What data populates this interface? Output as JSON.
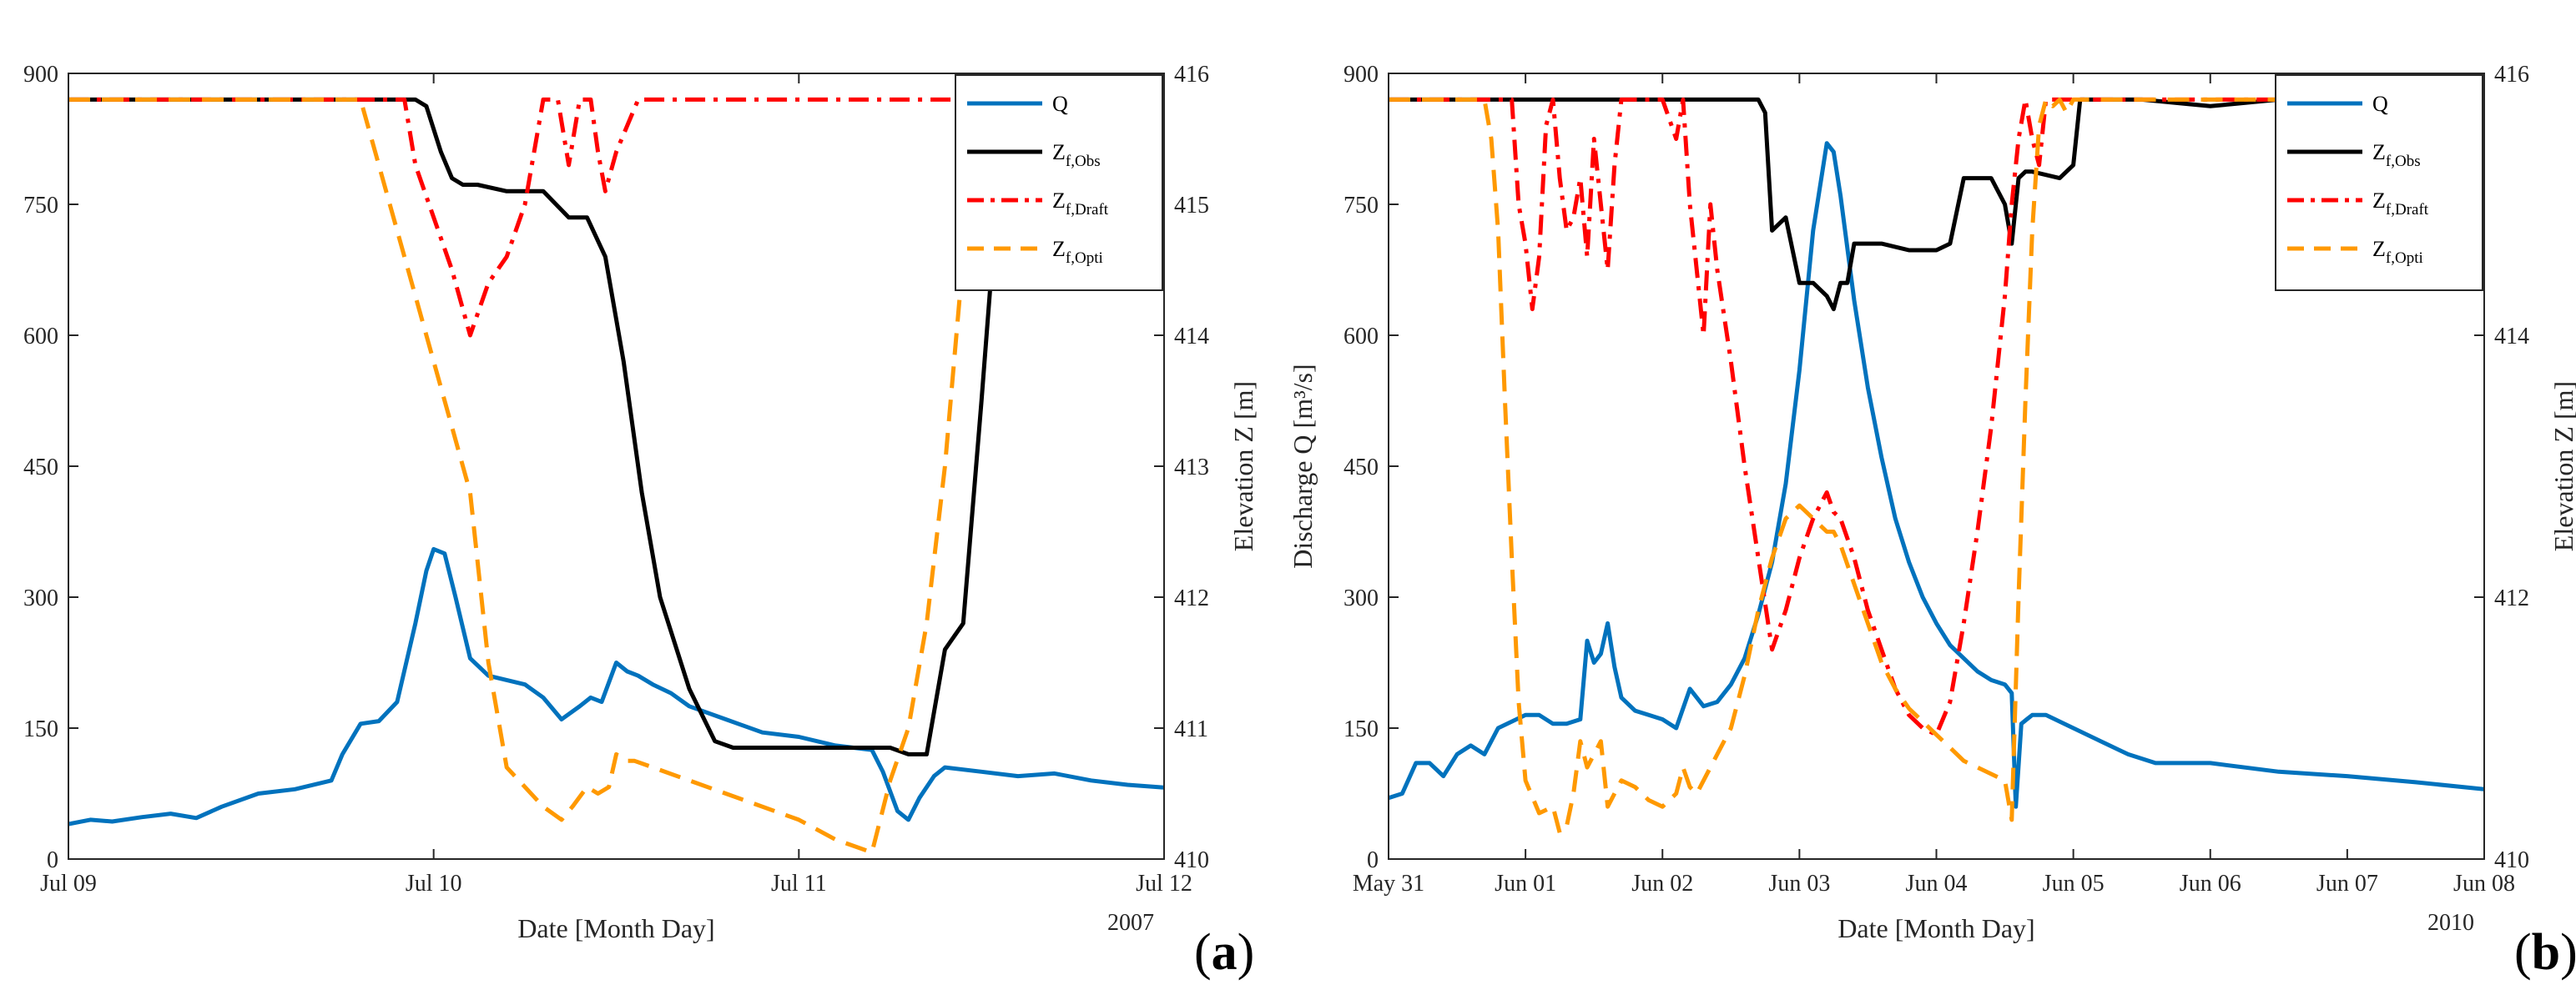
{
  "chart_data": [
    {
      "panel_label": "a",
      "type": "line",
      "year_label": "2007",
      "xlabel": "Date [Month Day]",
      "ylabel_left": "Discharge Q [m³/s]",
      "ylabel_right": "Elevation Z [m]",
      "x_ticks": [
        "Jul 09",
        "Jul 10",
        "Jul 11",
        "Jul 12"
      ],
      "xlim_days": [
        0,
        3
      ],
      "ylim_left": [
        0,
        900
      ],
      "yticks_left": [
        "0",
        "150",
        "300",
        "450",
        "600",
        "750",
        "900"
      ],
      "ylim_right": [
        410,
        416
      ],
      "yticks_right": [
        "410",
        "411",
        "412",
        "413",
        "414",
        "415",
        "416"
      ],
      "legend_position": "top-right",
      "series": [
        {
          "name": "Q",
          "sub": "",
          "axis": "left",
          "color": "#0072BD",
          "dash": "solid",
          "x": [
            0,
            0.06,
            0.12,
            0.2,
            0.28,
            0.35,
            0.42,
            0.52,
            0.62,
            0.72,
            0.75,
            0.8,
            0.85,
            0.9,
            0.95,
            0.98,
            1.0,
            1.03,
            1.06,
            1.1,
            1.15,
            1.2,
            1.25,
            1.3,
            1.35,
            1.4,
            1.43,
            1.46,
            1.5,
            1.53,
            1.56,
            1.6,
            1.65,
            1.7,
            1.8,
            1.9,
            2.0,
            2.1,
            2.2,
            2.23,
            2.27,
            2.3,
            2.33,
            2.37,
            2.4,
            2.5,
            2.6,
            2.7,
            2.8,
            2.9,
            3.0
          ],
          "y": [
            40,
            45,
            43,
            48,
            52,
            47,
            60,
            75,
            80,
            90,
            120,
            155,
            158,
            180,
            270,
            330,
            355,
            350,
            300,
            230,
            210,
            205,
            200,
            185,
            160,
            175,
            185,
            180,
            225,
            215,
            210,
            200,
            190,
            175,
            160,
            145,
            140,
            130,
            125,
            100,
            55,
            45,
            70,
            95,
            105,
            100,
            95,
            98,
            90,
            85,
            82
          ]
        },
        {
          "name": "Z",
          "sub": "f,Obs",
          "axis": "right",
          "color": "#000000",
          "dash": "solid",
          "x": [
            0,
            0.95,
            0.98,
            1.02,
            1.05,
            1.08,
            1.12,
            1.2,
            1.3,
            1.37,
            1.42,
            1.47,
            1.52,
            1.57,
            1.62,
            1.7,
            1.77,
            1.82,
            2.0,
            2.1,
            2.2,
            2.25,
            2.3,
            2.35,
            2.4,
            2.45,
            2.5,
            2.55,
            2.6,
            3.0
          ],
          "y": [
            415.8,
            415.8,
            415.75,
            415.4,
            415.2,
            415.15,
            415.15,
            415.1,
            415.1,
            414.9,
            414.9,
            414.6,
            413.8,
            412.8,
            412.0,
            411.3,
            410.9,
            410.85,
            410.85,
            410.85,
            410.85,
            410.85,
            410.8,
            410.8,
            411.6,
            411.8,
            413.5,
            415.3,
            415.8,
            415.8
          ]
        },
        {
          "name": "Z",
          "sub": "f,Draft",
          "axis": "right",
          "color": "#FF0000",
          "dash": "dashdot",
          "x": [
            0,
            0.92,
            0.95,
            1.0,
            1.05,
            1.1,
            1.15,
            1.2,
            1.25,
            1.3,
            1.34,
            1.37,
            1.4,
            1.43,
            1.45,
            1.47,
            1.5,
            1.53,
            1.56,
            1.6,
            1.65,
            1.7,
            3.0
          ],
          "y": [
            415.8,
            415.8,
            415.3,
            414.9,
            414.5,
            414.0,
            414.4,
            414.6,
            415.0,
            415.8,
            415.8,
            415.3,
            415.8,
            415.8,
            415.4,
            415.1,
            415.4,
            415.6,
            415.8,
            415.8,
            415.8,
            415.8,
            415.8
          ]
        },
        {
          "name": "Z",
          "sub": "f,Opti",
          "axis": "right",
          "color": "#FF9900",
          "dash": "dash",
          "x": [
            0,
            0.8,
            0.85,
            0.9,
            0.95,
            1.0,
            1.05,
            1.1,
            1.15,
            1.2,
            1.3,
            1.35,
            1.38,
            1.42,
            1.45,
            1.48,
            1.5,
            1.53,
            1.55,
            1.6,
            1.7,
            1.8,
            2.0,
            2.1,
            2.2,
            2.25,
            2.3,
            2.35,
            2.4,
            2.45,
            2.5,
            3.0
          ],
          "y": [
            415.8,
            415.8,
            415.3,
            414.8,
            414.3,
            413.8,
            413.3,
            412.8,
            411.5,
            410.7,
            410.4,
            410.3,
            410.4,
            410.55,
            410.5,
            410.55,
            410.8,
            410.75,
            410.75,
            410.7,
            410.6,
            410.5,
            410.3,
            410.15,
            410.05,
            410.6,
            411.0,
            411.8,
            413.0,
            414.6,
            415.8,
            415.8
          ]
        }
      ]
    },
    {
      "panel_label": "b",
      "type": "line",
      "year_label": "2010",
      "xlabel": "Date [Month Day]",
      "ylabel_left": "Discharge Q [m³/s]",
      "ylabel_right": "Elevation Z [m]",
      "x_ticks": [
        "May 31",
        "Jun 01",
        "Jun 02",
        "Jun 03",
        "Jun 04",
        "Jun 05",
        "Jun 06",
        "Jun 07",
        "Jun 08"
      ],
      "xlim_days": [
        0,
        8
      ],
      "ylim_left": [
        0,
        900
      ],
      "yticks_left": [
        "0",
        "150",
        "300",
        "450",
        "600",
        "750",
        "900"
      ],
      "ylim_right": [
        410,
        416
      ],
      "yticks_right": [
        "410",
        "412",
        "414",
        "416"
      ],
      "legend_position": "top-right",
      "series": [
        {
          "name": "Q",
          "sub": "",
          "axis": "left",
          "color": "#0072BD",
          "dash": "solid",
          "x": [
            0,
            0.1,
            0.2,
            0.3,
            0.4,
            0.5,
            0.6,
            0.7,
            0.8,
            1.0,
            1.1,
            1.2,
            1.3,
            1.4,
            1.45,
            1.5,
            1.55,
            1.6,
            1.65,
            1.7,
            1.8,
            1.9,
            2.0,
            2.1,
            2.2,
            2.3,
            2.4,
            2.5,
            2.6,
            2.7,
            2.8,
            2.9,
            3.0,
            3.1,
            3.2,
            3.25,
            3.3,
            3.4,
            3.5,
            3.6,
            3.7,
            3.8,
            3.9,
            4.0,
            4.1,
            4.2,
            4.3,
            4.4,
            4.5,
            4.55,
            4.58,
            4.62,
            4.66,
            4.7,
            4.8,
            5.0,
            5.2,
            5.4,
            5.6,
            6.0,
            6.5,
            7.0,
            7.5,
            8.0
          ],
          "y": [
            70,
            75,
            110,
            110,
            95,
            120,
            130,
            120,
            150,
            165,
            165,
            155,
            155,
            160,
            250,
            225,
            235,
            270,
            220,
            185,
            170,
            165,
            160,
            150,
            195,
            175,
            180,
            200,
            230,
            280,
            340,
            430,
            560,
            720,
            820,
            810,
            760,
            640,
            540,
            460,
            390,
            340,
            300,
            270,
            245,
            230,
            215,
            205,
            200,
            190,
            60,
            155,
            160,
            165,
            165,
            150,
            135,
            120,
            110,
            110,
            100,
            95,
            88,
            80
          ]
        },
        {
          "name": "Z",
          "sub": "f,Obs",
          "axis": "right",
          "color": "#000000",
          "dash": "solid",
          "x": [
            0,
            0.5,
            1.0,
            1.5,
            2.0,
            2.5,
            2.7,
            2.75,
            2.8,
            2.9,
            3.0,
            3.1,
            3.2,
            3.25,
            3.3,
            3.35,
            3.4,
            3.5,
            3.6,
            3.8,
            4.0,
            4.1,
            4.2,
            4.4,
            4.5,
            4.55,
            4.6,
            4.65,
            4.7,
            4.9,
            5.0,
            5.05,
            5.1,
            5.5,
            6.0,
            6.5,
            7.0,
            7.5,
            8.0
          ],
          "y": [
            415.8,
            415.8,
            415.8,
            415.8,
            415.8,
            415.8,
            415.8,
            415.7,
            414.8,
            414.9,
            414.4,
            414.4,
            414.3,
            414.2,
            414.4,
            414.4,
            414.7,
            414.7,
            414.7,
            414.65,
            414.65,
            414.7,
            415.2,
            415.2,
            415.0,
            414.7,
            415.2,
            415.25,
            415.25,
            415.2,
            415.3,
            415.8,
            415.8,
            415.8,
            415.75,
            415.8,
            415.8,
            415.8,
            415.8
          ]
        },
        {
          "name": "Z",
          "sub": "f,Draft",
          "axis": "right",
          "color": "#FF0000",
          "dash": "dashdot",
          "x": [
            0,
            0.9,
            0.95,
            1.0,
            1.05,
            1.1,
            1.15,
            1.2,
            1.25,
            1.3,
            1.35,
            1.4,
            1.45,
            1.5,
            1.55,
            1.6,
            1.65,
            1.7,
            1.75,
            1.8,
            1.9,
            2.0,
            2.1,
            2.15,
            2.2,
            2.25,
            2.3,
            2.35,
            2.4,
            2.5,
            2.6,
            2.7,
            2.8,
            2.9,
            3.0,
            3.1,
            3.2,
            3.25,
            3.3,
            3.4,
            3.5,
            3.6,
            3.7,
            3.8,
            3.9,
            4.0,
            4.1,
            4.2,
            4.3,
            4.4,
            4.5,
            4.55,
            4.6,
            4.65,
            4.7,
            4.75,
            4.8,
            4.9,
            5.0,
            8.0
          ],
          "y": [
            415.8,
            415.8,
            415.0,
            414.7,
            414.2,
            414.6,
            415.6,
            415.8,
            415.2,
            414.8,
            414.9,
            415.2,
            414.6,
            415.5,
            415.0,
            414.5,
            415.3,
            415.8,
            415.8,
            415.8,
            415.8,
            415.8,
            415.5,
            415.8,
            415.0,
            414.5,
            414.0,
            415.0,
            414.5,
            413.8,
            413.0,
            412.3,
            411.6,
            411.9,
            412.3,
            412.6,
            412.8,
            412.65,
            412.6,
            412.3,
            411.9,
            411.6,
            411.3,
            411.1,
            411.0,
            410.95,
            411.2,
            411.8,
            412.5,
            413.3,
            414.3,
            415.0,
            415.5,
            415.8,
            415.5,
            415.3,
            415.8,
            415.8,
            415.8,
            415.8
          ]
        },
        {
          "name": "Z",
          "sub": "f,Opti",
          "axis": "right",
          "color": "#FF9900",
          "dash": "dash",
          "x": [
            0,
            0.7,
            0.75,
            0.8,
            0.85,
            0.9,
            0.95,
            1.0,
            1.1,
            1.2,
            1.25,
            1.3,
            1.35,
            1.4,
            1.45,
            1.5,
            1.55,
            1.6,
            1.7,
            1.8,
            1.9,
            2.0,
            2.1,
            2.15,
            2.2,
            2.25,
            2.3,
            2.4,
            2.5,
            2.6,
            2.7,
            2.8,
            2.9,
            3.0,
            3.1,
            3.2,
            3.25,
            3.3,
            3.4,
            3.5,
            3.6,
            3.7,
            3.8,
            3.9,
            4.0,
            4.1,
            4.2,
            4.3,
            4.4,
            4.5,
            4.55,
            4.6,
            4.65,
            4.7,
            4.75,
            4.8,
            4.85,
            4.9,
            4.95,
            5.0,
            5.5,
            6.0,
            7.0,
            8.0
          ],
          "y": [
            415.8,
            415.8,
            415.5,
            414.8,
            413.5,
            412.3,
            411.2,
            410.6,
            410.35,
            410.4,
            410.2,
            410.25,
            410.5,
            410.9,
            410.7,
            410.8,
            410.9,
            410.4,
            410.6,
            410.55,
            410.45,
            410.4,
            410.5,
            410.7,
            410.55,
            410.5,
            410.6,
            410.8,
            411.0,
            411.4,
            411.9,
            412.3,
            412.6,
            412.7,
            412.6,
            412.5,
            412.5,
            412.4,
            412.1,
            411.8,
            411.5,
            411.3,
            411.15,
            411.05,
            410.95,
            410.85,
            410.75,
            410.7,
            410.65,
            410.6,
            410.3,
            412.0,
            413.5,
            414.8,
            415.6,
            415.8,
            415.75,
            415.8,
            415.7,
            415.8,
            415.8,
            415.8,
            415.8,
            415.8
          ]
        }
      ]
    }
  ]
}
